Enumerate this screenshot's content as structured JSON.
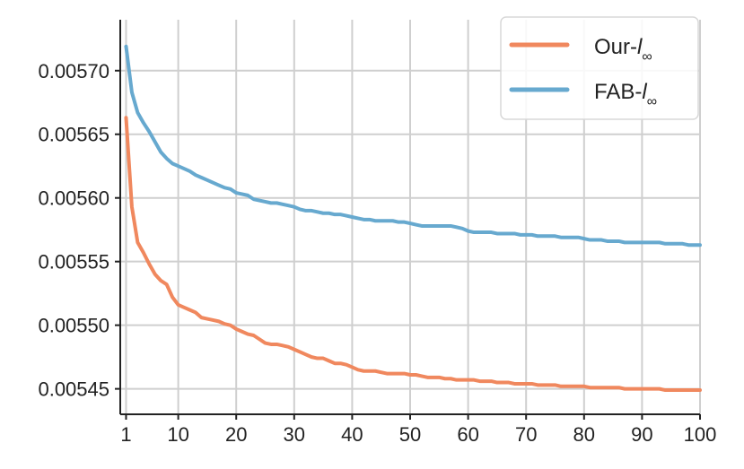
{
  "chart_data": {
    "type": "line",
    "title": "",
    "xlabel": "",
    "ylabel": "",
    "xlim": [
      0,
      100
    ],
    "ylim": [
      0.00543,
      0.00574
    ],
    "x_ticks": [
      1,
      10,
      20,
      30,
      40,
      50,
      60,
      70,
      80,
      90,
      100
    ],
    "x_tick_labels": [
      "1",
      "10",
      "20",
      "30",
      "40",
      "50",
      "60",
      "70",
      "80",
      "90",
      "100"
    ],
    "y_ticks": [
      0.00545,
      0.0055,
      0.00555,
      0.0056,
      0.00565,
      0.0057
    ],
    "y_tick_labels": [
      "0.00545",
      "0.00550",
      "0.00555",
      "0.00560",
      "0.00565",
      "0.00570"
    ],
    "grid": true,
    "legend_position": "top-right",
    "series": [
      {
        "name": "Our-l∞",
        "legend_main": "Our-",
        "legend_italic": "l",
        "legend_sub": "∞",
        "color": "#f0885e",
        "x": [
          1,
          2,
          3,
          4,
          5,
          6,
          7,
          8,
          9,
          10,
          11,
          12,
          13,
          14,
          15,
          16,
          17,
          18,
          19,
          20,
          21,
          22,
          23,
          24,
          25,
          26,
          27,
          28,
          29,
          30,
          31,
          32,
          33,
          34,
          35,
          36,
          37,
          38,
          39,
          40,
          41,
          42,
          43,
          44,
          45,
          46,
          47,
          48,
          49,
          50,
          51,
          52,
          53,
          54,
          55,
          56,
          57,
          58,
          59,
          60,
          61,
          62,
          63,
          64,
          65,
          66,
          67,
          68,
          69,
          70,
          71,
          72,
          73,
          74,
          75,
          76,
          77,
          78,
          79,
          80,
          81,
          82,
          83,
          84,
          85,
          86,
          87,
          88,
          89,
          90,
          91,
          92,
          93,
          94,
          95,
          96,
          97,
          98,
          99,
          100
        ],
        "y": [
          0.005663,
          0.005593,
          0.005565,
          0.005557,
          0.005548,
          0.00554,
          0.005535,
          0.005532,
          0.005522,
          0.005516,
          0.005514,
          0.005512,
          0.00551,
          0.005506,
          0.005505,
          0.005504,
          0.005503,
          0.005501,
          0.0055,
          0.005497,
          0.005495,
          0.005493,
          0.005492,
          0.005489,
          0.005486,
          0.005485,
          0.005485,
          0.005484,
          0.005483,
          0.005481,
          0.005479,
          0.005477,
          0.005475,
          0.005474,
          0.005474,
          0.005472,
          0.00547,
          0.00547,
          0.005469,
          0.005467,
          0.005465,
          0.005464,
          0.005464,
          0.005464,
          0.005463,
          0.005462,
          0.005462,
          0.005462,
          0.005462,
          0.005461,
          0.005461,
          0.00546,
          0.005459,
          0.005459,
          0.005459,
          0.005458,
          0.005458,
          0.005457,
          0.005457,
          0.005457,
          0.005457,
          0.005456,
          0.005456,
          0.005456,
          0.005455,
          0.005455,
          0.005455,
          0.005454,
          0.005454,
          0.005454,
          0.005454,
          0.005453,
          0.005453,
          0.005453,
          0.005453,
          0.005452,
          0.005452,
          0.005452,
          0.005452,
          0.005452,
          0.005451,
          0.005451,
          0.005451,
          0.005451,
          0.005451,
          0.005451,
          0.00545,
          0.00545,
          0.00545,
          0.00545,
          0.00545,
          0.00545,
          0.00545,
          0.005449,
          0.005449,
          0.005449,
          0.005449,
          0.005449,
          0.005449,
          0.005449
        ]
      },
      {
        "name": "FAB-l∞",
        "legend_main": "FAB-",
        "legend_italic": "l",
        "legend_sub": "∞",
        "color": "#67a9cf",
        "x": [
          1,
          2,
          3,
          4,
          5,
          6,
          7,
          8,
          9,
          10,
          11,
          12,
          13,
          14,
          15,
          16,
          17,
          18,
          19,
          20,
          21,
          22,
          23,
          24,
          25,
          26,
          27,
          28,
          29,
          30,
          31,
          32,
          33,
          34,
          35,
          36,
          37,
          38,
          39,
          40,
          41,
          42,
          43,
          44,
          45,
          46,
          47,
          48,
          49,
          50,
          51,
          52,
          53,
          54,
          55,
          56,
          57,
          58,
          59,
          60,
          61,
          62,
          63,
          64,
          65,
          66,
          67,
          68,
          69,
          70,
          71,
          72,
          73,
          74,
          75,
          76,
          77,
          78,
          79,
          80,
          81,
          82,
          83,
          84,
          85,
          86,
          87,
          88,
          89,
          90,
          91,
          92,
          93,
          94,
          95,
          96,
          97,
          98,
          99,
          100
        ],
        "y": [
          0.005719,
          0.005683,
          0.005667,
          0.005659,
          0.005652,
          0.005644,
          0.005636,
          0.005631,
          0.005627,
          0.005625,
          0.005623,
          0.005621,
          0.005618,
          0.005616,
          0.005614,
          0.005612,
          0.00561,
          0.005608,
          0.005607,
          0.005604,
          0.005603,
          0.005602,
          0.005599,
          0.005598,
          0.005597,
          0.005596,
          0.005596,
          0.005595,
          0.005594,
          0.005593,
          0.005591,
          0.00559,
          0.00559,
          0.005589,
          0.005588,
          0.005588,
          0.005587,
          0.005587,
          0.005586,
          0.005585,
          0.005584,
          0.005583,
          0.005583,
          0.005582,
          0.005582,
          0.005582,
          0.005582,
          0.005581,
          0.005581,
          0.00558,
          0.005579,
          0.005578,
          0.005578,
          0.005578,
          0.005578,
          0.005578,
          0.005578,
          0.005577,
          0.005576,
          0.005574,
          0.005573,
          0.005573,
          0.005573,
          0.005573,
          0.005572,
          0.005572,
          0.005572,
          0.005572,
          0.005571,
          0.005571,
          0.005571,
          0.00557,
          0.00557,
          0.00557,
          0.00557,
          0.005569,
          0.005569,
          0.005569,
          0.005569,
          0.005568,
          0.005567,
          0.005567,
          0.005567,
          0.005566,
          0.005566,
          0.005566,
          0.005565,
          0.005565,
          0.005565,
          0.005565,
          0.005565,
          0.005565,
          0.005565,
          0.005564,
          0.005564,
          0.005564,
          0.005564,
          0.005563,
          0.005563,
          0.005563
        ]
      }
    ]
  }
}
